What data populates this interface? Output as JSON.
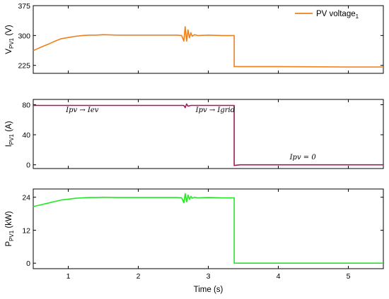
{
  "chart_data": [
    {
      "type": "line",
      "ylabel": {
        "main": "V",
        "sub": "PV1",
        "unit": " (V)"
      },
      "xlim": [
        0.5,
        5.5
      ],
      "ylim": [
        205,
        375
      ],
      "yticks": [
        225,
        300,
        375
      ],
      "legend": {
        "text": "PV voltage",
        "sub": "1",
        "placement": "top-right"
      },
      "series": [
        {
          "color": "#f07f1a",
          "x": [
            0.5,
            0.6,
            0.7,
            0.8,
            0.9,
            1.0,
            1.1,
            1.2,
            1.3,
            1.4,
            1.5,
            1.7,
            2.0,
            2.3,
            2.55,
            2.62,
            2.65,
            2.67,
            2.69,
            2.71,
            2.73,
            2.75,
            2.77,
            2.8,
            2.85,
            3.0,
            3.2,
            3.37,
            3.37,
            3.4,
            4.0,
            5.0,
            5.5
          ],
          "y": [
            262,
            270,
            277,
            285,
            292,
            295,
            298,
            300,
            301,
            301,
            302,
            301,
            301,
            301,
            301,
            300,
            286,
            322,
            286,
            314,
            294,
            307,
            298,
            302,
            300,
            301,
            300,
            300,
            222,
            222,
            222,
            221,
            221
          ]
        }
      ]
    },
    {
      "type": "line",
      "ylabel": {
        "main": "I",
        "sub": "PV1",
        "unit": " (A)"
      },
      "xlim": [
        0.5,
        5.5
      ],
      "ylim": [
        -5,
        87
      ],
      "yticks": [
        0,
        40,
        80
      ],
      "annotations": [
        {
          "text": "Ipv → Iev",
          "x": 1.2,
          "y": 70
        },
        {
          "text": "Ipv → Igrid",
          "x": 3.1,
          "y": 70
        },
        {
          "text": "Ipv = 0",
          "x": 4.35,
          "y": 7
        }
      ],
      "series": [
        {
          "color": "#a8175d",
          "x": [
            0.5,
            1.0,
            1.5,
            2.0,
            2.5,
            2.65,
            2.67,
            2.69,
            2.71,
            2.75,
            3.0,
            3.37,
            3.37,
            3.45,
            4.0,
            5.0,
            5.5
          ],
          "y": [
            79,
            79,
            79,
            79,
            79,
            79,
            76,
            81,
            78,
            79,
            79,
            79,
            -1,
            0,
            0,
            0,
            0
          ]
        }
      ]
    },
    {
      "type": "line",
      "ylabel": {
        "main": "P",
        "sub": "PV1",
        "unit": " (kW)"
      },
      "xlabel": "Time (s)",
      "xlim": [
        0.5,
        5.5
      ],
      "xticks": [
        1,
        2,
        3,
        4,
        5
      ],
      "ylim": [
        -2,
        27
      ],
      "yticks": [
        0,
        12,
        24
      ],
      "series": [
        {
          "color": "#22ea22",
          "x": [
            0.5,
            0.6,
            0.7,
            0.8,
            0.9,
            1.0,
            1.1,
            1.2,
            1.3,
            1.4,
            1.5,
            1.7,
            2.0,
            2.3,
            2.55,
            2.62,
            2.65,
            2.67,
            2.69,
            2.71,
            2.73,
            2.75,
            2.77,
            2.8,
            2.85,
            3.0,
            3.2,
            3.37,
            3.37,
            3.4,
            4.0,
            5.0,
            5.5
          ],
          "y": [
            20.6,
            21.2,
            21.8,
            22.4,
            23.0,
            23.3,
            23.6,
            23.8,
            23.9,
            23.9,
            24.0,
            23.9,
            23.9,
            23.9,
            23.9,
            23.8,
            22.0,
            25.3,
            22.3,
            24.8,
            23.2,
            24.3,
            23.6,
            24.0,
            23.8,
            23.9,
            23.8,
            23.8,
            0,
            0,
            0,
            0,
            0
          ]
        }
      ]
    }
  ]
}
